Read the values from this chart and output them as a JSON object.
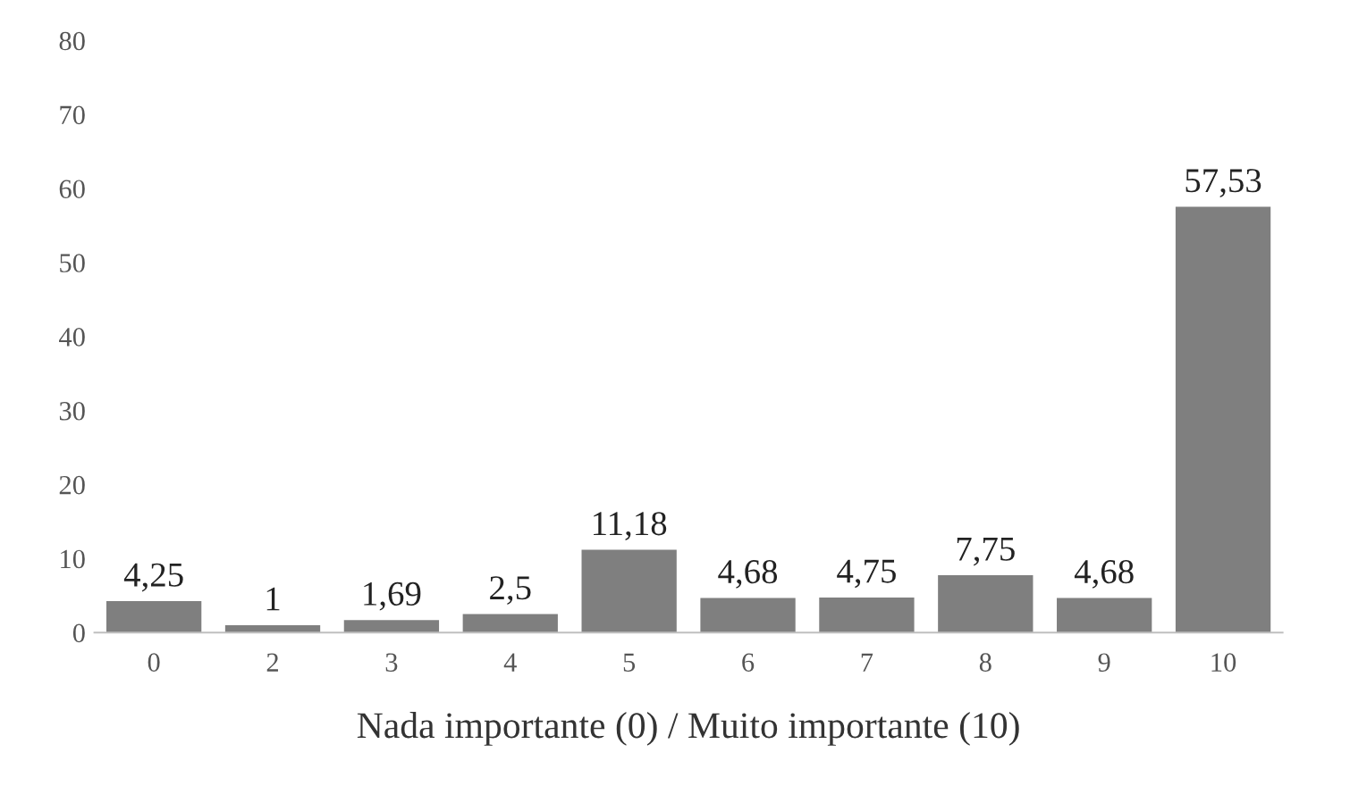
{
  "chart_data": {
    "type": "bar",
    "xlabel": "Nada importante (0) / Muito importante (10)",
    "categories": [
      "0",
      "2",
      "3",
      "4",
      "5",
      "6",
      "7",
      "8",
      "9",
      "10"
    ],
    "values": [
      4.25,
      1,
      1.69,
      2.5,
      11.18,
      4.68,
      4.75,
      7.75,
      4.68,
      57.53
    ],
    "value_labels": [
      "4,25",
      "1",
      "1,69",
      "2,5",
      "11,18",
      "4,68",
      "4,75",
      "7,75",
      "4,68",
      "57,53"
    ],
    "color": "#7f7f7f",
    "ylim": [
      0,
      80
    ],
    "yticks": [
      0,
      10,
      20,
      30,
      40,
      50,
      60,
      70,
      80
    ],
    "grid": false
  }
}
